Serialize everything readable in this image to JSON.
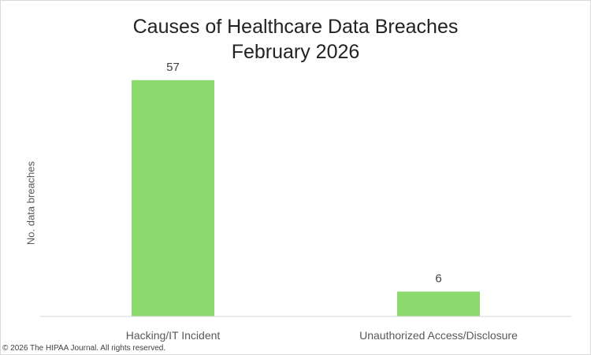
{
  "chart_data": {
    "type": "bar",
    "title_line1": "Causes of Healthcare Data Breaches",
    "title_line2": "February 2026",
    "ylabel": "No. data breaches",
    "xlabel": "",
    "categories": [
      "Hacking/IT Incident",
      "Unauthorized Access/Disclosure"
    ],
    "values": [
      57,
      6
    ],
    "ylim": [
      0,
      60
    ],
    "grid": false,
    "legend": "none",
    "data_labels": true,
    "bar_color": "#8CD96E"
  },
  "footer": {
    "copyright": "© 2026 The HIPAA Journal. All rights reserved."
  }
}
